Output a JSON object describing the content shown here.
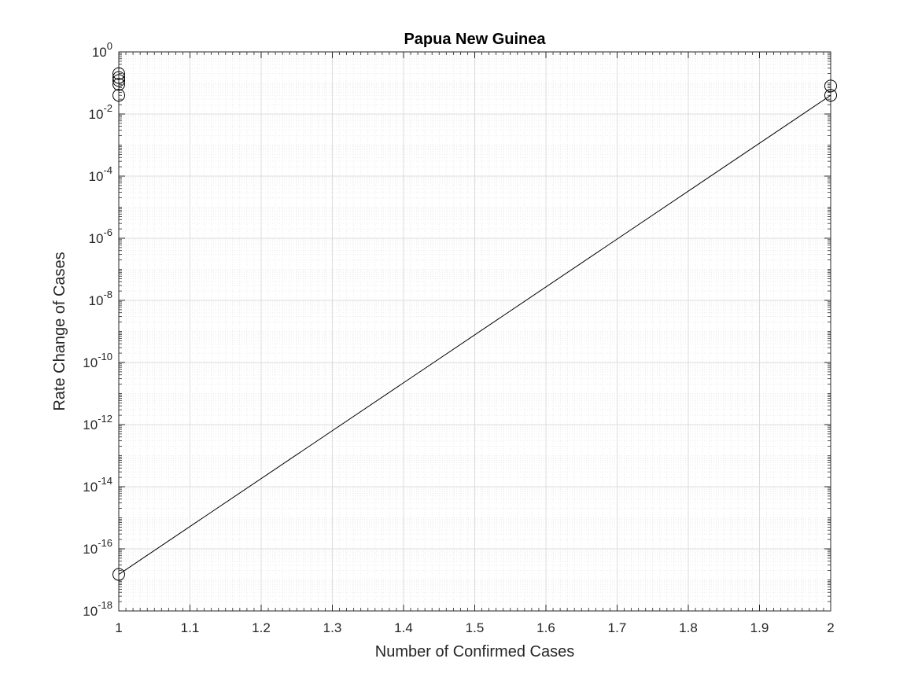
{
  "chart_data": {
    "type": "line",
    "title": "Papua New Guinea",
    "xlabel": "Number of Confirmed Cases",
    "ylabel": "Rate Change of Cases",
    "xlim": [
      1,
      2
    ],
    "ylim": [
      1e-18,
      1
    ],
    "yscale": "log",
    "grid": true,
    "minor_grid": true,
    "x_ticks": [
      {
        "value": 1.0,
        "label": "1"
      },
      {
        "value": 1.1,
        "label": "1.1"
      },
      {
        "value": 1.2,
        "label": "1.2"
      },
      {
        "value": 1.3,
        "label": "1.3"
      },
      {
        "value": 1.4,
        "label": "1.4"
      },
      {
        "value": 1.5,
        "label": "1.5"
      },
      {
        "value": 1.6,
        "label": "1.6"
      },
      {
        "value": 1.7,
        "label": "1.7"
      },
      {
        "value": 1.8,
        "label": "1.8"
      },
      {
        "value": 1.9,
        "label": "1.9"
      },
      {
        "value": 2.0,
        "label": "2"
      }
    ],
    "y_ticks": [
      {
        "exponent": 0,
        "base": "10",
        "sup": "0"
      },
      {
        "exponent": -2,
        "base": "10",
        "sup": "-2"
      },
      {
        "exponent": -4,
        "base": "10",
        "sup": "-4"
      },
      {
        "exponent": -6,
        "base": "10",
        "sup": "-6"
      },
      {
        "exponent": -8,
        "base": "10",
        "sup": "-8"
      },
      {
        "exponent": -10,
        "base": "10",
        "sup": "-10"
      },
      {
        "exponent": -12,
        "base": "10",
        "sup": "-12"
      },
      {
        "exponent": -14,
        "base": "10",
        "sup": "-14"
      },
      {
        "exponent": -16,
        "base": "10",
        "sup": "-16"
      },
      {
        "exponent": -18,
        "base": "10",
        "sup": "-18"
      }
    ],
    "series": [
      {
        "type": "scatter",
        "marker": "circle",
        "points": [
          {
            "x": 1,
            "y": 0.2
          },
          {
            "x": 1,
            "y": 0.15
          },
          {
            "x": 1,
            "y": 0.12
          },
          {
            "x": 1,
            "y": 0.09
          },
          {
            "x": 1,
            "y": 0.04
          },
          {
            "x": 1,
            "y": 1.5e-17
          },
          {
            "x": 2,
            "y": 0.08
          },
          {
            "x": 2,
            "y": 0.04
          }
        ]
      },
      {
        "type": "line",
        "points": [
          {
            "x": 1,
            "y": 1.5e-17
          },
          {
            "x": 2,
            "y": 0.04
          }
        ]
      }
    ],
    "colors": {
      "background": "#ffffff",
      "axis": "#262626",
      "grid_major": "#dcdcdc",
      "grid_minor": "#ececec",
      "line": "#000000",
      "marker": "#000000"
    }
  }
}
